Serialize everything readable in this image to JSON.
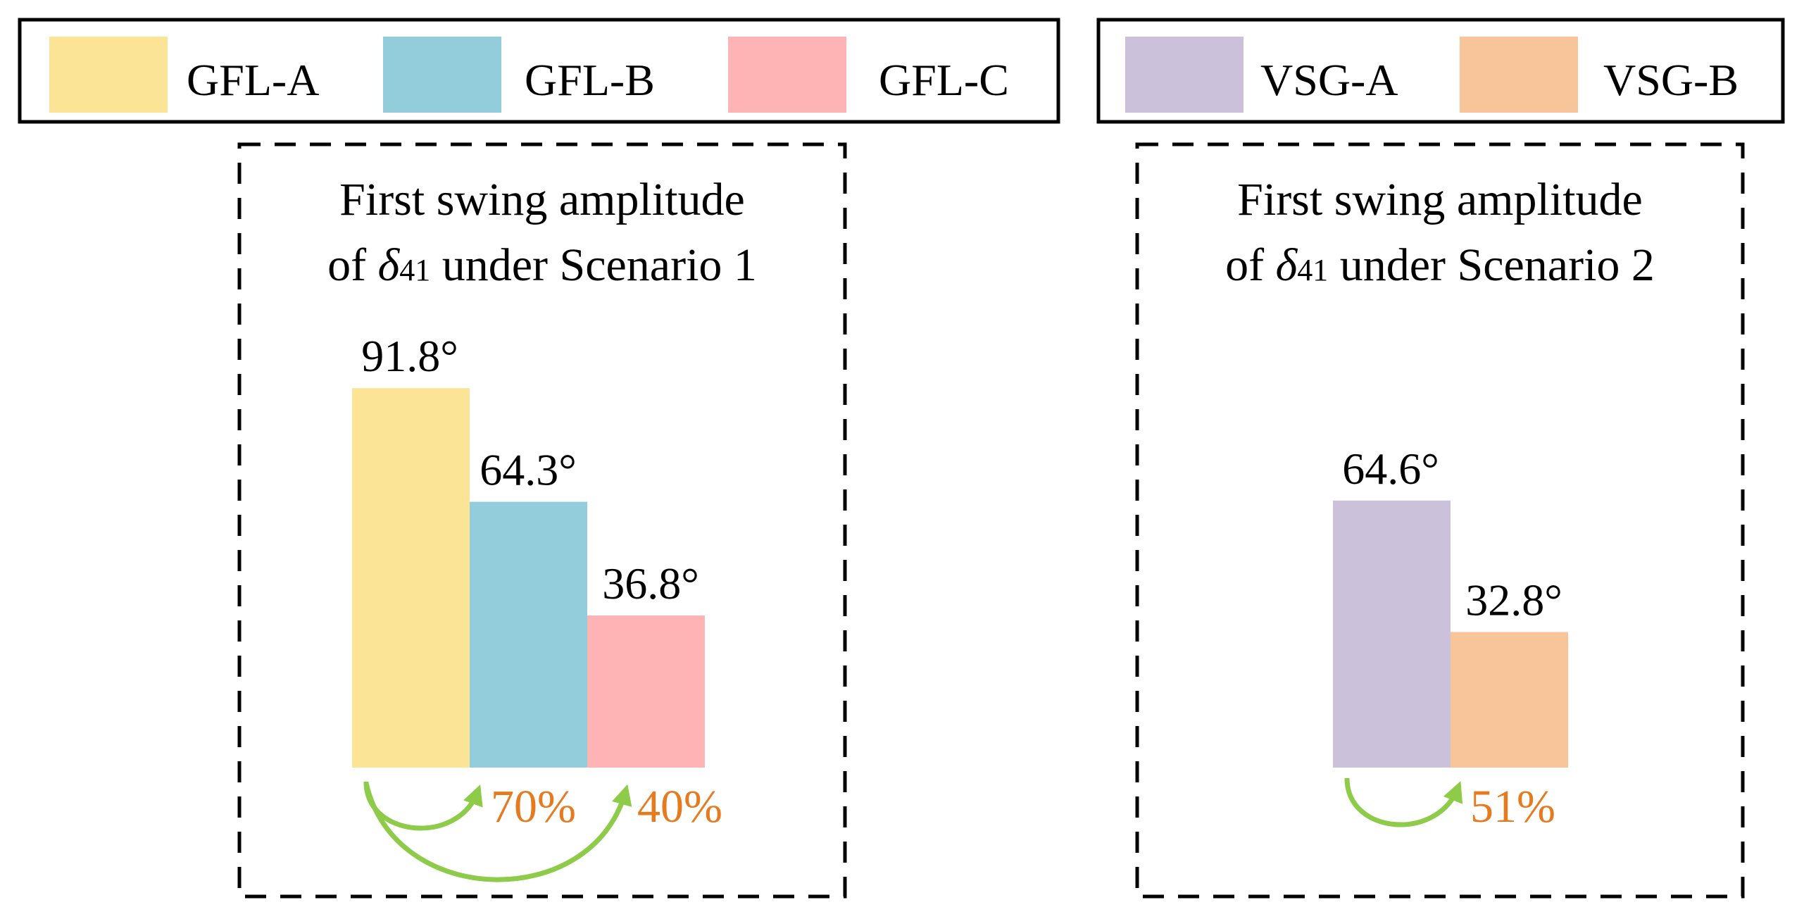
{
  "colors": {
    "gfl_a": "#FCE496",
    "gfl_b": "#93CCDB",
    "gfl_c": "#FEB4B4",
    "vsg_a": "#CBC1DA",
    "vsg_b": "#F8C499",
    "arrow": "#8DCB49",
    "percent_text": "#E57A1F",
    "text": "#000000"
  },
  "chart_data": [
    {
      "type": "bar",
      "title_line1": "First swing amplitude",
      "title_line2_prefix": "of ",
      "title_symbol": "δ",
      "title_subscript": "41",
      "title_line2_suffix": " under Scenario 1",
      "legend_position": "top-left",
      "series": [
        {
          "name": "GFL-A",
          "value": 91.8,
          "label": "91.8°",
          "color_key": "gfl_a"
        },
        {
          "name": "GFL-B",
          "value": 64.3,
          "label": "64.3°",
          "color_key": "gfl_b"
        },
        {
          "name": "GFL-C",
          "value": 36.8,
          "label": "36.8°",
          "color_key": "gfl_c"
        }
      ],
      "ylim": [
        0,
        100
      ],
      "reductions": [
        {
          "from": "GFL-A",
          "to": "GFL-B",
          "label": "70%"
        },
        {
          "from": "GFL-A",
          "to": "GFL-C",
          "label": "40%"
        }
      ]
    },
    {
      "type": "bar",
      "title_line1": "First swing amplitude",
      "title_line2_prefix": "of ",
      "title_symbol": "δ",
      "title_subscript": "41",
      "title_line2_suffix": " under Scenario 2",
      "legend_position": "top-right",
      "series": [
        {
          "name": "VSG-A",
          "value": 64.6,
          "label": "64.6°",
          "color_key": "vsg_a"
        },
        {
          "name": "VSG-B",
          "value": 32.8,
          "label": "32.8°",
          "color_key": "vsg_b"
        }
      ],
      "ylim": [
        0,
        100
      ],
      "reductions": [
        {
          "from": "VSG-A",
          "to": "VSG-B",
          "label": "51%"
        }
      ]
    }
  ]
}
